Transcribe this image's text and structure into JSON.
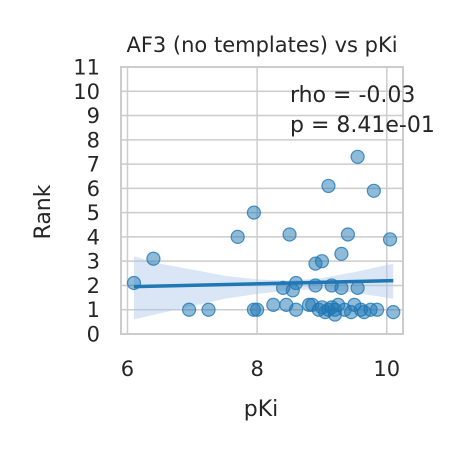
{
  "chart_data": {
    "type": "scatter",
    "title": "AF3 (no templates) vs pKi",
    "xlabel": "pKi",
    "ylabel": "Rank",
    "xlim": [
      5.9,
      10.25
    ],
    "ylim": [
      0,
      11
    ],
    "xticks": [
      6,
      8,
      10
    ],
    "yticks": [
      0,
      1,
      2,
      3,
      4,
      5,
      6,
      7,
      8,
      9,
      10,
      11
    ],
    "grid": true,
    "annotations": [
      "rho = -0.03",
      "p = 8.41e-01"
    ],
    "points": [
      {
        "x": 6.1,
        "y": 2.1
      },
      {
        "x": 6.4,
        "y": 3.1
      },
      {
        "x": 6.95,
        "y": 1.0
      },
      {
        "x": 7.25,
        "y": 1.0
      },
      {
        "x": 7.7,
        "y": 4.0
      },
      {
        "x": 7.95,
        "y": 5.0
      },
      {
        "x": 7.95,
        "y": 1.0
      },
      {
        "x": 8.0,
        "y": 1.0
      },
      {
        "x": 8.25,
        "y": 1.2
      },
      {
        "x": 8.45,
        "y": 1.2
      },
      {
        "x": 8.4,
        "y": 1.9
      },
      {
        "x": 8.5,
        "y": 4.1
      },
      {
        "x": 8.55,
        "y": 1.8
      },
      {
        "x": 8.6,
        "y": 2.1
      },
      {
        "x": 8.6,
        "y": 1.0
      },
      {
        "x": 8.8,
        "y": 1.2
      },
      {
        "x": 8.85,
        "y": 1.2
      },
      {
        "x": 8.9,
        "y": 2.9
      },
      {
        "x": 8.9,
        "y": 2.0
      },
      {
        "x": 8.95,
        "y": 1.0
      },
      {
        "x": 9.0,
        "y": 1.1
      },
      {
        "x": 9.0,
        "y": 3.0
      },
      {
        "x": 9.05,
        "y": 0.9
      },
      {
        "x": 9.1,
        "y": 6.1
      },
      {
        "x": 9.1,
        "y": 1.0
      },
      {
        "x": 9.15,
        "y": 1.1
      },
      {
        "x": 9.15,
        "y": 2.0
      },
      {
        "x": 9.2,
        "y": 1.0
      },
      {
        "x": 9.2,
        "y": 0.8
      },
      {
        "x": 9.25,
        "y": 1.2
      },
      {
        "x": 9.3,
        "y": 3.3
      },
      {
        "x": 9.3,
        "y": 1.9
      },
      {
        "x": 9.35,
        "y": 1.0
      },
      {
        "x": 9.4,
        "y": 4.1
      },
      {
        "x": 9.45,
        "y": 0.9
      },
      {
        "x": 9.5,
        "y": 1.2
      },
      {
        "x": 9.55,
        "y": 7.3
      },
      {
        "x": 9.55,
        "y": 1.9
      },
      {
        "x": 9.6,
        "y": 1.0
      },
      {
        "x": 9.65,
        "y": 0.9
      },
      {
        "x": 9.75,
        "y": 1.0
      },
      {
        "x": 9.8,
        "y": 5.9
      },
      {
        "x": 9.85,
        "y": 1.0
      },
      {
        "x": 10.05,
        "y": 3.9
      },
      {
        "x": 10.1,
        "y": 0.9
      }
    ],
    "regression": {
      "x": [
        6.1,
        10.1
      ],
      "y": [
        1.95,
        2.2
      ]
    },
    "confidence_band": {
      "x": [
        6.1,
        6.5,
        7.0,
        7.5,
        8.0,
        8.5,
        9.0,
        9.5,
        10.1
      ],
      "lower": [
        0.6,
        0.85,
        1.15,
        1.45,
        1.65,
        1.8,
        1.85,
        1.7,
        1.45
      ],
      "upper": [
        3.2,
        2.9,
        2.65,
        2.4,
        2.25,
        2.2,
        2.3,
        2.55,
        2.9
      ]
    },
    "colors": {
      "points": "#1f77b4",
      "line": "#1f77b4",
      "band": "#aec7e8",
      "grid": "#cccccc",
      "spine": "#cccccc"
    }
  }
}
